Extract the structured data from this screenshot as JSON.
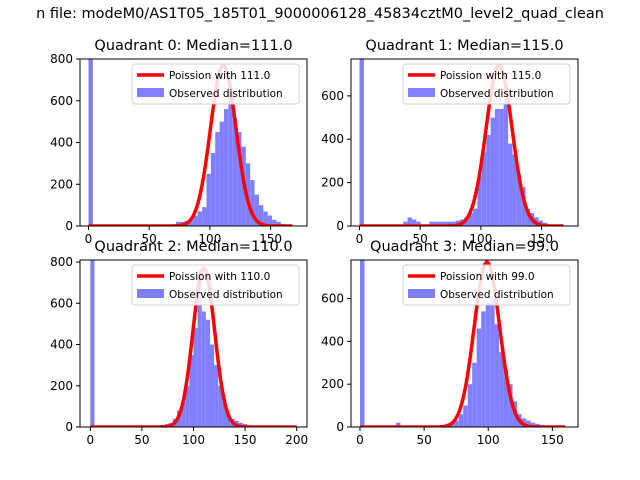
{
  "suptitle": "n file: modeM0/AS1T05_185T01_9000006128_45834cztM0_level2_quad_clean",
  "chart_data": [
    {
      "type": "bar",
      "title": "Quadrant 0: Median=111.0",
      "median": 111.0,
      "xlim": [
        -7,
        180
      ],
      "ylim": [
        0,
        800
      ],
      "xticks": [
        0,
        50,
        100,
        150
      ],
      "yticks": [
        0,
        200,
        400,
        600,
        800
      ],
      "legend": {
        "position": "top-right",
        "line_label": "Poission with 111.0",
        "hist_label": "Observed distribution"
      },
      "bin_width": 3.6,
      "histogram": [
        {
          "x": 0,
          "y": 800
        },
        {
          "x": 72,
          "y": 20
        },
        {
          "x": 75.6,
          "y": 20
        },
        {
          "x": 79.2,
          "y": 25
        },
        {
          "x": 82.8,
          "y": 30
        },
        {
          "x": 86.4,
          "y": 50
        },
        {
          "x": 90,
          "y": 70
        },
        {
          "x": 93.6,
          "y": 90
        },
        {
          "x": 97.2,
          "y": 250
        },
        {
          "x": 100.8,
          "y": 350
        },
        {
          "x": 104.4,
          "y": 450
        },
        {
          "x": 108,
          "y": 500
        },
        {
          "x": 111.6,
          "y": 560
        },
        {
          "x": 115.2,
          "y": 640
        },
        {
          "x": 118.8,
          "y": 520
        },
        {
          "x": 122.4,
          "y": 450
        },
        {
          "x": 126,
          "y": 380
        },
        {
          "x": 129.6,
          "y": 300
        },
        {
          "x": 133.2,
          "y": 220
        },
        {
          "x": 136.8,
          "y": 150
        },
        {
          "x": 140.4,
          "y": 100
        },
        {
          "x": 144,
          "y": 70
        },
        {
          "x": 147.6,
          "y": 50
        },
        {
          "x": 151.2,
          "y": 30
        },
        {
          "x": 154.8,
          "y": 20
        },
        {
          "x": 158.4,
          "y": 10
        }
      ],
      "poisson_curve": {
        "x_start": 0,
        "x_end": 168,
        "peak": 770
      }
    },
    {
      "type": "bar",
      "title": "Quadrant 1: Median=115.0",
      "median": 115.0,
      "xlim": [
        -7,
        180
      ],
      "ylim": [
        0,
        770
      ],
      "xticks": [
        0,
        50,
        100,
        150
      ],
      "yticks": [
        0,
        200,
        400,
        600
      ],
      "legend": {
        "position": "top-right",
        "line_label": "Poission with 115.0",
        "hist_label": "Observed distribution"
      },
      "bin_width": 3.6,
      "histogram": [
        {
          "x": 0,
          "y": 770
        },
        {
          "x": 36,
          "y": 20
        },
        {
          "x": 39.6,
          "y": 40
        },
        {
          "x": 43.2,
          "y": 30
        },
        {
          "x": 46.8,
          "y": 20
        },
        {
          "x": 57.6,
          "y": 20
        },
        {
          "x": 61.2,
          "y": 20
        },
        {
          "x": 64.8,
          "y": 20
        },
        {
          "x": 68.4,
          "y": 20
        },
        {
          "x": 72,
          "y": 20
        },
        {
          "x": 75.6,
          "y": 20
        },
        {
          "x": 79.2,
          "y": 25
        },
        {
          "x": 82.8,
          "y": 30
        },
        {
          "x": 86.4,
          "y": 40
        },
        {
          "x": 90,
          "y": 60
        },
        {
          "x": 93.6,
          "y": 80
        },
        {
          "x": 97.2,
          "y": 230
        },
        {
          "x": 100.8,
          "y": 340
        },
        {
          "x": 104.4,
          "y": 420
        },
        {
          "x": 108,
          "y": 500
        },
        {
          "x": 111.6,
          "y": 540
        },
        {
          "x": 115.2,
          "y": 540
        },
        {
          "x": 118.8,
          "y": 590
        },
        {
          "x": 122.4,
          "y": 380
        },
        {
          "x": 126,
          "y": 330
        },
        {
          "x": 129.6,
          "y": 240
        },
        {
          "x": 133.2,
          "y": 180
        },
        {
          "x": 136.8,
          "y": 80
        },
        {
          "x": 140.4,
          "y": 60
        },
        {
          "x": 144,
          "y": 40
        },
        {
          "x": 147.6,
          "y": 25
        },
        {
          "x": 151.2,
          "y": 15
        }
      ],
      "poisson_curve": {
        "x_start": 0,
        "x_end": 168,
        "peak": 740
      }
    },
    {
      "type": "bar",
      "title": "Quadrant 2: Median=110.0",
      "median": 110.0,
      "xlim": [
        -10,
        210
      ],
      "ylim": [
        0,
        810
      ],
      "xticks": [
        0,
        50,
        100,
        150,
        200
      ],
      "yticks": [
        0,
        200,
        400,
        600,
        800
      ],
      "legend": {
        "position": "top-right",
        "line_label": "Poission with 110.0",
        "hist_label": "Observed distribution"
      },
      "bin_width": 4,
      "histogram": [
        {
          "x": 0,
          "y": 810
        },
        {
          "x": 68,
          "y": 10
        },
        {
          "x": 72,
          "y": 15
        },
        {
          "x": 76,
          "y": 20
        },
        {
          "x": 80,
          "y": 40
        },
        {
          "x": 84,
          "y": 80
        },
        {
          "x": 88,
          "y": 120
        },
        {
          "x": 92,
          "y": 200
        },
        {
          "x": 96,
          "y": 350
        },
        {
          "x": 100,
          "y": 480
        },
        {
          "x": 104,
          "y": 760
        },
        {
          "x": 108,
          "y": 560
        },
        {
          "x": 112,
          "y": 520
        },
        {
          "x": 116,
          "y": 400
        },
        {
          "x": 120,
          "y": 300
        },
        {
          "x": 124,
          "y": 200
        },
        {
          "x": 128,
          "y": 120
        },
        {
          "x": 132,
          "y": 60
        },
        {
          "x": 136,
          "y": 40
        },
        {
          "x": 140,
          "y": 30
        },
        {
          "x": 144,
          "y": 20
        },
        {
          "x": 148,
          "y": 15
        },
        {
          "x": 152,
          "y": 10
        },
        {
          "x": 160,
          "y": 5
        },
        {
          "x": 180,
          "y": 5
        }
      ],
      "poisson_curve": {
        "x_start": 0,
        "x_end": 200,
        "peak": 770
      }
    },
    {
      "type": "bar",
      "title": "Quadrant 3: Median=99.0",
      "median": 99.0,
      "xlim": [
        -7,
        170
      ],
      "ylim": [
        0,
        780
      ],
      "xticks": [
        0,
        50,
        100,
        150
      ],
      "yticks": [
        0,
        200,
        400,
        600
      ],
      "legend": {
        "position": "top-right",
        "line_label": "Poission with 99.0",
        "hist_label": "Observed distribution"
      },
      "bin_width": 3.5,
      "histogram": [
        {
          "x": 0,
          "y": 780
        },
        {
          "x": 28,
          "y": 20
        },
        {
          "x": 63,
          "y": 10
        },
        {
          "x": 66.5,
          "y": 15
        },
        {
          "x": 70,
          "y": 20
        },
        {
          "x": 73.5,
          "y": 30
        },
        {
          "x": 77,
          "y": 60
        },
        {
          "x": 80.5,
          "y": 100
        },
        {
          "x": 84,
          "y": 200
        },
        {
          "x": 87.5,
          "y": 300
        },
        {
          "x": 91,
          "y": 460
        },
        {
          "x": 94.5,
          "y": 540
        },
        {
          "x": 98,
          "y": 580
        },
        {
          "x": 101.5,
          "y": 600
        },
        {
          "x": 105,
          "y": 480
        },
        {
          "x": 108.5,
          "y": 350
        },
        {
          "x": 112,
          "y": 270
        },
        {
          "x": 115.5,
          "y": 200
        },
        {
          "x": 119,
          "y": 120
        },
        {
          "x": 122.5,
          "y": 60
        },
        {
          "x": 126,
          "y": 40
        },
        {
          "x": 129.5,
          "y": 30
        },
        {
          "x": 133,
          "y": 20
        },
        {
          "x": 136.5,
          "y": 15
        },
        {
          "x": 140,
          "y": 10
        }
      ],
      "poisson_curve": {
        "x_start": 0,
        "x_end": 160,
        "peak": 770
      }
    }
  ],
  "colors": {
    "histogram": "#8080ff",
    "curve": "#ff0000",
    "curve_faded": "#f08080",
    "axis": "#000000",
    "background": "#ffffff"
  }
}
